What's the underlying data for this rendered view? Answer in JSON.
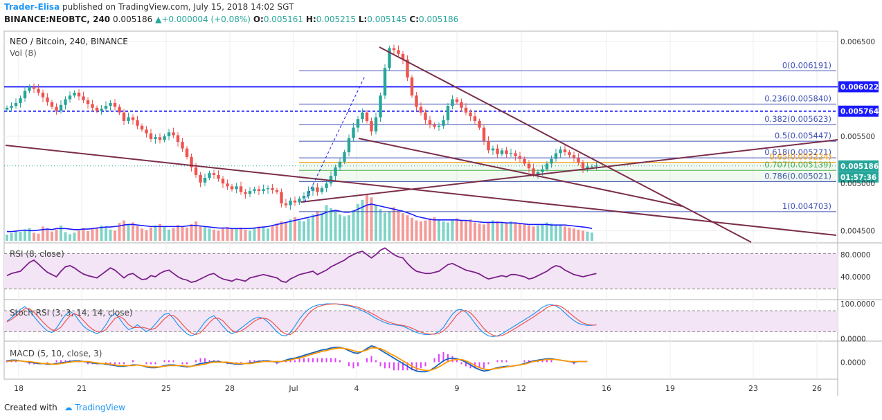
{
  "header": {
    "author": "Trader-Elisa",
    "published_text": "published on TradingView.com, July 15, 2018 14:02 SGT",
    "symbol": "BINANCE:NEOBTC, 240",
    "last": "0.005186",
    "change": "+0.000004 (+0.08%)",
    "o_label": "O:",
    "o": "0.005161",
    "h_label": "H:",
    "h": "0.005215",
    "l_label": "L:",
    "l": "0.005145",
    "c_label": "C:",
    "c": "0.005186"
  },
  "legend": {
    "title": "NEO / Bitcoin, 240, BINANCE",
    "vol": "Vol (8)"
  },
  "footer": {
    "created_with": "Created with",
    "brand": "TradingView"
  },
  "colors": {
    "up": "#26a69a",
    "down": "#ef5350",
    "trend": "#7b2d4a",
    "blue": "#1a1aff",
    "fib": "#3f51b5"
  },
  "chart_data": [
    {
      "type": "candlestick",
      "name": "price",
      "ylim": [
        0.00438,
        0.00661
      ],
      "yticks": [
        "0.006500",
        "0.005500",
        "0.004500"
      ],
      "ytick_values": [
        0.0065,
        0.0055,
        0.0045
      ],
      "x_labels": [
        "18",
        "21",
        "25",
        "28",
        "Jul",
        "4",
        "9",
        "12",
        "16",
        "19",
        "23",
        "26"
      ],
      "price_labels": [
        {
          "text": "0.006022",
          "value": 0.006022,
          "bg": "#1a1aff"
        },
        {
          "text": "0.005764",
          "value": 0.005764,
          "bg": "#1a1aff"
        },
        {
          "text": "0.005186",
          "value": 0.005186,
          "bg": "#26a69a"
        },
        {
          "text": "01:57:36",
          "value": 0.005186,
          "bg": "#26a69a",
          "is_timer": true
        },
        {
          "text": "0.005000",
          "value": 0.005,
          "bg": "#ffffff",
          "is_timer": false
        }
      ],
      "horizontal_lines": [
        {
          "value": 0.006022,
          "style": "solid",
          "color": "#1a1aff"
        },
        {
          "value": 0.005764,
          "style": "dashed",
          "color": "#1a1aff"
        }
      ],
      "fib_levels": [
        {
          "label": "0(0.006191)",
          "value": 0.006191
        },
        {
          "label": "0.236(0.005840)",
          "value": 0.00584
        },
        {
          "label": "0.382(0.005623)",
          "value": 0.005623
        },
        {
          "label": "0.5(0.005447)",
          "value": 0.005447
        },
        {
          "label": "0.618(0.005271)",
          "value": 0.005271
        },
        {
          "label": "0.65(0.005224)",
          "value": 0.005224
        },
        {
          "label": "0.707(0.005139)",
          "value": 0.005139
        },
        {
          "label": "0.786(0.005021)",
          "value": 0.005021
        },
        {
          "label": "1(0.004703)",
          "value": 0.004703
        }
      ],
      "last_price": 0.005186,
      "candles_close": [
        0.0058,
        0.00582,
        0.00585,
        0.0059,
        0.00598,
        0.00602,
        0.006,
        0.00596,
        0.00591,
        0.00586,
        0.00581,
        0.00577,
        0.00583,
        0.00589,
        0.00593,
        0.00596,
        0.00592,
        0.00588,
        0.00584,
        0.0058,
        0.00577,
        0.00579,
        0.00582,
        0.00585,
        0.00581,
        0.00575,
        0.00566,
        0.0057,
        0.00567,
        0.00561,
        0.00557,
        0.00553,
        0.00547,
        0.00549,
        0.00546,
        0.0055,
        0.00554,
        0.00551,
        0.00544,
        0.00537,
        0.00528,
        0.00517,
        0.00509,
        0.00501,
        0.00506,
        0.00511,
        0.00509,
        0.00505,
        0.005,
        0.00497,
        0.00494,
        0.00497,
        0.00491,
        0.00489,
        0.00492,
        0.00494,
        0.00492,
        0.00494,
        0.00495,
        0.00493,
        0.00491,
        0.00479,
        0.00477,
        0.00482,
        0.0048,
        0.00484,
        0.00487,
        0.00492,
        0.00496,
        0.00491,
        0.00495,
        0.005,
        0.00508,
        0.00517,
        0.00523,
        0.00533,
        0.00548,
        0.00559,
        0.00568,
        0.00575,
        0.00566,
        0.00555,
        0.0057,
        0.00593,
        0.00622,
        0.00643,
        0.00641,
        0.00637,
        0.00631,
        0.00612,
        0.00593,
        0.00581,
        0.00575,
        0.00567,
        0.00562,
        0.0056,
        0.00561,
        0.00567,
        0.00582,
        0.00589,
        0.00586,
        0.0058,
        0.00575,
        0.00571,
        0.00566,
        0.00559,
        0.00545,
        0.00535,
        0.00537,
        0.00531,
        0.00535,
        0.00531,
        0.00532,
        0.00529,
        0.00526,
        0.00521,
        0.00516,
        0.0051,
        0.00512,
        0.00515,
        0.00521,
        0.00526,
        0.00532,
        0.00536,
        0.00533,
        0.0053,
        0.00527,
        0.00522,
        0.00516,
        0.00518,
        0.00518,
        0.00519
      ],
      "volume": [
        12,
        15,
        20,
        18,
        22,
        25,
        16,
        14,
        28,
        24,
        18,
        22,
        30,
        17,
        13,
        16,
        20,
        25,
        19,
        23,
        26,
        30,
        28,
        22,
        20,
        35,
        40,
        32,
        36,
        29,
        24,
        21,
        26,
        30,
        33,
        27,
        22,
        25,
        31,
        28,
        26,
        33,
        38,
        30,
        28,
        24,
        22,
        20,
        25,
        27,
        24,
        23,
        26,
        22,
        20,
        25,
        28,
        26,
        24,
        30,
        34,
        38,
        36,
        42,
        46,
        40,
        38,
        44,
        52,
        58,
        55,
        70,
        64,
        60,
        52,
        48,
        50,
        60,
        72,
        80,
        90,
        85,
        70,
        62,
        55,
        58,
        66,
        60,
        54,
        50,
        45,
        40,
        38,
        40,
        44,
        46,
        42,
        38,
        36,
        40,
        44,
        40,
        38,
        42,
        36,
        34,
        32,
        36,
        40,
        38,
        35,
        34,
        38,
        36,
        34,
        32,
        30,
        28,
        30,
        33,
        36,
        34,
        32,
        30,
        28,
        26,
        24,
        22,
        20,
        18,
        16
      ],
      "vol_ma": [
        18,
        18,
        19,
        20,
        21,
        20,
        20,
        21,
        22,
        23,
        22,
        24,
        24,
        24,
        23,
        22,
        22,
        23,
        23,
        24,
        25,
        26,
        27,
        27,
        28,
        29,
        31,
        32,
        32,
        31,
        30,
        29,
        28,
        28,
        28,
        28,
        28,
        28,
        28,
        28,
        29,
        30,
        30,
        29,
        28,
        27,
        26,
        25,
        25,
        25,
        24,
        24,
        24,
        24,
        24,
        25,
        26,
        27,
        28,
        30,
        32,
        34,
        36,
        38,
        40,
        42,
        44,
        46,
        48,
        50,
        52,
        56,
        58,
        60,
        58,
        56,
        56,
        58,
        62,
        66,
        70,
        72,
        70,
        68,
        66,
        64,
        62,
        60,
        58,
        55,
        52,
        48,
        46,
        44,
        42,
        41,
        41,
        41,
        41,
        41,
        41,
        40,
        40,
        39,
        38,
        37,
        36,
        36,
        36,
        36,
        36,
        35,
        35,
        35,
        34,
        33,
        32,
        32,
        32,
        32,
        32,
        31,
        31,
        31,
        31,
        30,
        29,
        28,
        27,
        26,
        24
      ]
    },
    {
      "type": "line",
      "name": "RSI (8, close)",
      "ylim": [
        0,
        100
      ],
      "yticks": [
        "80.0000",
        "40.0000"
      ],
      "ytick_values": [
        80,
        40
      ],
      "bands": [
        70,
        30
      ],
      "values": [
        42,
        46,
        48,
        50,
        58,
        66,
        70,
        63,
        55,
        48,
        44,
        40,
        50,
        58,
        60,
        56,
        50,
        45,
        42,
        40,
        38,
        44,
        50,
        56,
        52,
        45,
        38,
        44,
        46,
        40,
        35,
        36,
        42,
        40,
        46,
        50,
        52,
        46,
        40,
        36,
        34,
        30,
        32,
        36,
        40,
        44,
        46,
        40,
        36,
        34,
        32,
        36,
        34,
        32,
        38,
        40,
        42,
        44,
        42,
        40,
        38,
        32,
        30,
        36,
        40,
        44,
        46,
        48,
        50,
        44,
        48,
        52,
        58,
        62,
        66,
        70,
        76,
        80,
        84,
        86,
        80,
        74,
        80,
        88,
        92,
        86,
        80,
        76,
        74,
        64,
        56,
        50,
        48,
        46,
        46,
        48,
        50,
        56,
        62,
        64,
        60,
        56,
        52,
        50,
        48,
        45,
        40,
        36,
        38,
        40,
        42,
        40,
        44,
        44,
        42,
        40,
        36,
        38,
        42,
        46,
        50,
        56,
        60,
        58,
        52,
        48,
        44,
        42,
        40,
        42,
        44,
        46
      ]
    },
    {
      "type": "line",
      "name": "Stoch RSI (3, 3, 14, 14, close)",
      "ylim": [
        -5,
        110
      ],
      "yticks": [
        "100.0000",
        "0.0000"
      ],
      "ytick_values": [
        100,
        0
      ],
      "bands": [
        80,
        20
      ],
      "k_values": [
        50,
        60,
        72,
        84,
        92,
        80,
        64,
        48,
        34,
        22,
        18,
        30,
        50,
        68,
        78,
        70,
        52,
        36,
        26,
        20,
        14,
        22,
        40,
        62,
        72,
        58,
        40,
        26,
        30,
        40,
        30,
        20,
        28,
        42,
        58,
        70,
        72,
        58,
        40,
        26,
        14,
        8,
        14,
        30,
        48,
        60,
        66,
        52,
        36,
        22,
        14,
        20,
        30,
        40,
        50,
        58,
        62,
        58,
        48,
        34,
        20,
        10,
        8,
        18,
        36,
        56,
        72,
        84,
        92,
        96,
        98,
        100,
        100,
        100,
        98,
        96,
        94,
        90,
        86,
        80,
        74,
        66,
        58,
        52,
        46,
        42,
        40,
        38,
        36,
        30,
        24,
        18,
        14,
        12,
        12,
        14,
        20,
        32,
        52,
        70,
        82,
        84,
        76,
        62,
        44,
        28,
        16,
        8,
        6,
        8,
        14,
        22,
        30,
        38,
        46,
        54,
        62,
        70,
        80,
        90,
        96,
        98,
        94,
        86,
        74,
        62,
        52,
        44,
        40,
        38,
        38,
        40
      ],
      "d_values": [
        48,
        55,
        65,
        76,
        86,
        86,
        76,
        62,
        48,
        35,
        25,
        24,
        33,
        50,
        65,
        72,
        66,
        52,
        38,
        27,
        20,
        19,
        26,
        42,
        58,
        64,
        56,
        41,
        32,
        32,
        33,
        30,
        26,
        30,
        43,
        57,
        67,
        67,
        56,
        41,
        27,
        16,
        12,
        17,
        31,
        46,
        58,
        59,
        51,
        37,
        24,
        18,
        22,
        30,
        40,
        50,
        57,
        59,
        56,
        47,
        34,
        21,
        13,
        12,
        21,
        37,
        55,
        71,
        83,
        91,
        95,
        98,
        99,
        100,
        99,
        98,
        96,
        93,
        90,
        85,
        79,
        73,
        66,
        58,
        52,
        47,
        43,
        40,
        38,
        35,
        30,
        24,
        19,
        15,
        13,
        13,
        15,
        22,
        35,
        51,
        68,
        79,
        81,
        74,
        61,
        45,
        29,
        17,
        10,
        7,
        9,
        15,
        22,
        30,
        38,
        46,
        54,
        62,
        71,
        80,
        89,
        95,
        96,
        93,
        85,
        74,
        63,
        53,
        45,
        41,
        39,
        39
      ]
    },
    {
      "type": "line",
      "name": "MACD (5, 10, close, 3)",
      "ylim": [
        -0.00025,
        0.0003
      ],
      "yticks": [
        "0.0000"
      ],
      "ytick_values": [
        0
      ],
      "macd": [
        2e-05,
        3e-05,
        3e-05,
        2e-05,
        1e-05,
        0.0,
        -1e-05,
        -2e-05,
        -2e-05,
        -3e-05,
        -3e-05,
        -2e-05,
        -1e-05,
        0.0,
        1e-05,
        2e-05,
        2e-05,
        1e-05,
        0.0,
        -1e-05,
        -2e-05,
        -2e-05,
        -3e-05,
        -4e-05,
        -5e-05,
        -6e-05,
        -6e-05,
        -5e-05,
        -4e-05,
        -4e-05,
        -5e-05,
        -7e-05,
        -8e-05,
        -8e-05,
        -7e-05,
        -5e-05,
        -4e-05,
        -4e-05,
        -5e-05,
        -6e-05,
        -7e-05,
        -6e-05,
        -4e-05,
        -2e-05,
        -1e-05,
        0.0,
        1e-05,
        1e-05,
        0.0,
        -1e-05,
        -2e-05,
        -3e-05,
        -3e-05,
        -2e-05,
        -1e-05,
        0.0,
        1e-05,
        2e-05,
        2e-05,
        1e-05,
        0.0,
        1e-05,
        3e-05,
        5e-05,
        6e-05,
        8e-05,
        0.0001,
        0.00012,
        0.00014,
        0.00016,
        0.00018,
        0.00019,
        0.00021,
        0.00022,
        0.00022,
        0.0002,
        0.00017,
        0.00014,
        0.00013,
        0.00016,
        0.0002,
        0.00024,
        0.00022,
        0.00018,
        0.00014,
        0.0001,
        6e-05,
        2e-05,
        -2e-05,
        -6e-05,
        -0.0001,
        -0.00013,
        -0.00014,
        -0.00014,
        -0.00012,
        -8e-05,
        -3e-05,
        2e-05,
        5e-05,
        6e-05,
        5e-05,
        3e-05,
        0.0,
        -4e-05,
        -8e-05,
        -0.00011,
        -0.00013,
        -0.00012,
        -0.0001,
        -8e-05,
        -7e-05,
        -6e-05,
        -6e-05,
        -5e-05,
        -4e-05,
        -2e-05,
        0.0,
        2e-05,
        3e-05,
        4e-05,
        5e-05,
        5e-05,
        4e-05,
        3e-05,
        2e-05,
        1e-05,
        0.0,
        1e-05,
        1e-05,
        1e-05
      ],
      "signal": [
        1e-05,
        2e-05,
        2e-05,
        2e-05,
        1e-05,
        1e-05,
        0.0,
        -1e-05,
        -2e-05,
        -2e-05,
        -3e-05,
        -3e-05,
        -2e-05,
        -1e-05,
        0.0,
        1e-05,
        1e-05,
        1e-05,
        1e-05,
        0.0,
        -1e-05,
        -2e-05,
        -2e-05,
        -3e-05,
        -4e-05,
        -5e-05,
        -5e-05,
        -5e-05,
        -5e-05,
        -4e-05,
        -5e-05,
        -6e-05,
        -7e-05,
        -7e-05,
        -7e-05,
        -6e-05,
        -5e-05,
        -5e-05,
        -5e-05,
        -5e-05,
        -6e-05,
        -6e-05,
        -5e-05,
        -4e-05,
        -3e-05,
        -1e-05,
        0.0,
        0.0,
        0.0,
        0.0,
        -1e-05,
        -2e-05,
        -2e-05,
        -2e-05,
        -2e-05,
        -1e-05,
        0.0,
        1e-05,
        1e-05,
        1e-05,
        1e-05,
        1e-05,
        2e-05,
        3e-05,
        5e-05,
        6e-05,
        8e-05,
        0.0001,
        0.00012,
        0.00014,
        0.00016,
        0.00017,
        0.00019,
        0.0002,
        0.00021,
        0.0002,
        0.00019,
        0.00017,
        0.00015,
        0.00016,
        0.00018,
        0.00021,
        0.00021,
        0.0002,
        0.00017,
        0.00013,
        0.0001,
        6e-05,
        2e-05,
        -2e-05,
        -6e-05,
        -9e-05,
        -0.00011,
        -0.00012,
        -0.00012,
        -0.0001,
        -7e-05,
        -3e-05,
        1e-05,
        3e-05,
        4e-05,
        4e-05,
        2e-05,
        -1e-05,
        -5e-05,
        -8e-05,
        -0.0001,
        -0.00011,
        -0.0001,
        -9e-05,
        -8e-05,
        -7e-05,
        -6e-05,
        -5e-05,
        -4e-05,
        -3e-05,
        -1e-05,
        1e-05,
        2e-05,
        3e-05,
        4e-05,
        4e-05,
        4e-05,
        3e-05,
        2e-05,
        1e-05,
        1e-05,
        1e-05,
        1e-05,
        1e-05
      ]
    }
  ]
}
